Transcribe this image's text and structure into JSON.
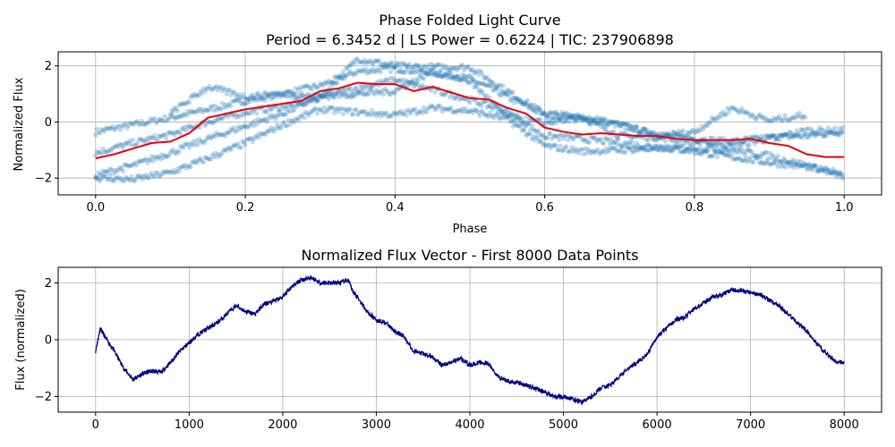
{
  "chart_data": [
    {
      "type": "scatter",
      "title": "Phase Folded Light Curve",
      "subtitle": "Period = 6.3452 d | LS Power = 0.6224 | TIC: 237906898",
      "xlabel": "Phase",
      "ylabel": "Normalized Flux",
      "xlim": [
        -0.05,
        1.05
      ],
      "ylim": [
        -2.6,
        2.5
      ],
      "xticks": [
        0.0,
        0.2,
        0.4,
        0.6,
        0.8,
        1.0
      ],
      "xtick_labels": [
        "0.0",
        "0.2",
        "0.4",
        "0.6",
        "0.8",
        "1.0"
      ],
      "yticks": [
        -2,
        0,
        2
      ],
      "ytick_labels": [
        "−2",
        "0",
        "2"
      ],
      "grid": true,
      "colors": {
        "points": "#1f77b4",
        "binned": "#e8000b"
      },
      "series": [
        {
          "kind": "scatter",
          "tracks": [
            {
              "x": [
                0.0,
                0.05,
                0.1,
                0.15,
                0.2,
                0.25,
                0.3,
                0.35,
                0.4,
                0.45,
                0.5,
                0.55,
                0.6,
                0.65,
                0.7,
                0.75,
                0.8,
                0.85,
                0.9,
                0.95,
                1.0
              ],
              "y": [
                -0.35,
                -0.1,
                0.15,
                0.45,
                0.75,
                1.0,
                1.3,
                1.8,
                1.9,
                1.75,
                1.55,
                0.9,
                0.25,
                0.05,
                -0.1,
                -0.45,
                -0.6,
                -0.7,
                -0.55,
                -0.5,
                -0.35
              ]
            },
            {
              "x": [
                0.0,
                0.05,
                0.1,
                0.15,
                0.2,
                0.25,
                0.3,
                0.35,
                0.4,
                0.45,
                0.5,
                0.55,
                0.6,
                0.65,
                0.7,
                0.75,
                0.8,
                0.85,
                0.9,
                0.95,
                1.0
              ],
              "y": [
                -1.1,
                -0.75,
                -0.45,
                0.0,
                0.35,
                0.55,
                0.85,
                2.25,
                2.0,
                1.95,
                1.95,
                1.1,
                0.3,
                0.2,
                -0.5,
                -0.55,
                -0.7,
                -0.85,
                -0.6,
                -0.3,
                -0.3
              ]
            },
            {
              "x": [
                0.0,
                0.05,
                0.1,
                0.15,
                0.2,
                0.25,
                0.3,
                0.35,
                0.4,
                0.45,
                0.5,
                0.55,
                0.6,
                0.65,
                0.7,
                0.75,
                0.8,
                0.85,
                0.9,
                0.95,
                1.0
              ],
              "y": [
                -1.9,
                -1.55,
                -1.1,
                -0.6,
                -0.15,
                0.3,
                0.9,
                1.2,
                1.5,
                1.15,
                0.8,
                0.35,
                -0.5,
                -0.6,
                -0.75,
                -0.9,
                -1.05,
                -1.25,
                -1.45,
                -1.6,
                -1.85
              ]
            },
            {
              "x": [
                0.0,
                0.05,
                0.1,
                0.15,
                0.2,
                0.25,
                0.3,
                0.35,
                0.4,
                0.45,
                0.5,
                0.55,
                0.6,
                0.65,
                0.7,
                0.75,
                0.8,
                0.85,
                0.9,
                0.95,
                1.0
              ],
              "y": [
                -2.0,
                -2.05,
                -1.8,
                -1.3,
                -0.75,
                -0.1,
                0.45,
                0.35,
                0.25,
                0.5,
                0.4,
                0.1,
                -0.85,
                -1.05,
                -1.0,
                -0.95,
                -0.9,
                -1.0,
                -1.2,
                -1.55,
                -1.95
              ]
            },
            {
              "x": [
                0.1,
                0.15,
                0.2,
                0.25,
                0.3,
                0.35,
                0.4,
                0.45,
                0.5,
                0.55,
                0.6,
                0.65,
                0.7,
                0.75,
                0.8,
                0.85,
                0.9,
                0.95
              ],
              "y": [
                0.3,
                1.25,
                0.9,
                1.0,
                0.9,
                1.0,
                1.1,
                1.8,
                1.45,
                0.2,
                -0.05,
                0.2,
                -0.1,
                -0.5,
                -0.35,
                0.5,
                0.05,
                0.25
              ]
            }
          ]
        },
        {
          "kind": "line",
          "x": [
            0.0,
            0.025,
            0.05,
            0.075,
            0.1,
            0.125,
            0.15,
            0.175,
            0.2,
            0.225,
            0.25,
            0.275,
            0.3,
            0.325,
            0.35,
            0.375,
            0.4,
            0.425,
            0.45,
            0.475,
            0.5,
            0.525,
            0.55,
            0.575,
            0.6,
            0.625,
            0.65,
            0.675,
            0.7,
            0.725,
            0.75,
            0.775,
            0.8,
            0.825,
            0.85,
            0.875,
            0.9,
            0.925,
            0.95,
            0.975,
            1.0
          ],
          "y": [
            -1.3,
            -1.15,
            -0.95,
            -0.75,
            -0.7,
            -0.4,
            0.15,
            0.3,
            0.45,
            0.55,
            0.65,
            0.75,
            1.1,
            1.2,
            1.4,
            1.35,
            1.35,
            1.1,
            1.25,
            1.05,
            0.85,
            0.8,
            0.5,
            0.3,
            -0.2,
            -0.35,
            -0.45,
            -0.4,
            -0.45,
            -0.5,
            -0.5,
            -0.6,
            -0.65,
            -0.65,
            -0.65,
            -0.6,
            -0.75,
            -0.85,
            -1.15,
            -1.25,
            -1.25
          ]
        }
      ]
    },
    {
      "type": "line",
      "title": "Normalized Flux Vector - First 8000 Data Points",
      "xlabel": "",
      "ylabel": "Flux (normalized)",
      "xlim": [
        -400,
        8400
      ],
      "ylim": [
        -2.55,
        2.55
      ],
      "xticks": [
        0,
        1000,
        2000,
        3000,
        4000,
        5000,
        6000,
        7000,
        8000
      ],
      "xtick_labels": [
        "0",
        "1000",
        "2000",
        "3000",
        "4000",
        "5000",
        "6000",
        "7000",
        "8000"
      ],
      "yticks": [
        -2,
        0,
        2
      ],
      "ytick_labels": [
        "−2",
        "0",
        "2"
      ],
      "grid": true,
      "colors": {
        "line": "#000080"
      },
      "series": [
        {
          "x": [
            0,
            50,
            100,
            200,
            300,
            400,
            500,
            600,
            700,
            800,
            900,
            1000,
            1100,
            1200,
            1300,
            1400,
            1500,
            1600,
            1700,
            1800,
            1900,
            2000,
            2100,
            2200,
            2300,
            2400,
            2500,
            2600,
            2700,
            2750,
            2800,
            2900,
            3000,
            3100,
            3200,
            3300,
            3400,
            3500,
            3600,
            3700,
            3800,
            3900,
            4000,
            4100,
            4200,
            4300,
            4400,
            4500,
            4600,
            4700,
            4800,
            4900,
            5000,
            5100,
            5200,
            5300,
            5400,
            5500,
            5600,
            5700,
            5800,
            5900,
            6000,
            6100,
            6200,
            6300,
            6400,
            6500,
            6600,
            6700,
            6800,
            6900,
            7000,
            7100,
            7200,
            7300,
            7400,
            7500,
            7600,
            7700,
            7800,
            7900,
            8000
          ],
          "y": [
            -0.4,
            0.4,
            0.1,
            -0.4,
            -1.0,
            -1.4,
            -1.2,
            -1.1,
            -1.15,
            -0.8,
            -0.4,
            -0.1,
            0.2,
            0.4,
            0.6,
            0.9,
            1.2,
            1.0,
            0.9,
            1.25,
            1.35,
            1.5,
            1.9,
            2.1,
            2.2,
            2.0,
            2.0,
            2.0,
            2.1,
            1.7,
            1.5,
            1.0,
            0.7,
            0.6,
            0.3,
            0.1,
            -0.4,
            -0.5,
            -0.6,
            -0.9,
            -0.8,
            -0.65,
            -0.9,
            -0.8,
            -0.85,
            -1.3,
            -1.45,
            -1.5,
            -1.6,
            -1.7,
            -1.85,
            -2.0,
            -2.0,
            -2.1,
            -2.2,
            -2.0,
            -1.7,
            -1.6,
            -1.3,
            -1.0,
            -0.75,
            -0.5,
            0.1,
            0.4,
            0.7,
            0.8,
            1.1,
            1.3,
            1.5,
            1.6,
            1.75,
            1.75,
            1.65,
            1.6,
            1.4,
            1.2,
            0.9,
            0.6,
            0.3,
            -0.1,
            -0.45,
            -0.75,
            -0.8
          ]
        }
      ]
    }
  ]
}
